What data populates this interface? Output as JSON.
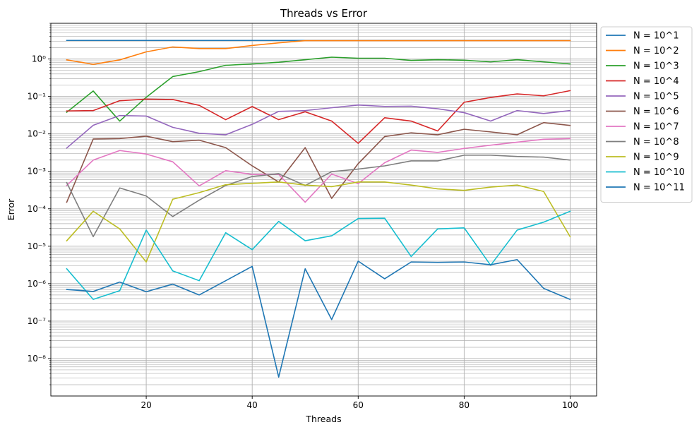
{
  "chart_data": {
    "type": "line",
    "title": "Threads vs Error",
    "xlabel": "Threads",
    "ylabel": "Error",
    "yscale": "log",
    "xlim": [
      2,
      105
    ],
    "ylim": [
      1e-09,
      9
    ],
    "x_ticks": [
      20,
      40,
      60,
      80,
      100
    ],
    "x_tick_labels": [
      "20",
      "40",
      "60",
      "80",
      "100"
    ],
    "y_ticks": [
      1e-08,
      1e-07,
      1e-06,
      1e-05,
      0.0001,
      0.001,
      0.01,
      0.1,
      1
    ],
    "y_tick_labels": [
      "10⁻⁸",
      "10⁻⁷",
      "10⁻⁶",
      "10⁻⁵",
      "10⁻⁴",
      "10⁻³",
      "10⁻²",
      "10⁻¹",
      "10⁰"
    ],
    "grid": true,
    "legend_position": "outside-top-right",
    "x": [
      5,
      10,
      15,
      20,
      25,
      30,
      35,
      40,
      45,
      50,
      55,
      60,
      65,
      70,
      75,
      80,
      85,
      90,
      95,
      100
    ],
    "series": [
      {
        "name": "N = 10^1",
        "color": "#1f77b4",
        "values": [
          3.14,
          3.14,
          3.14,
          3.14,
          3.14,
          3.14,
          3.14,
          3.14,
          3.14,
          3.14,
          3.14,
          3.14,
          3.14,
          3.14,
          3.14,
          3.14,
          3.14,
          3.14,
          3.14,
          3.14
        ]
      },
      {
        "name": "N = 10^2",
        "color": "#ff7f0e",
        "values": [
          0.95,
          0.72,
          0.95,
          1.55,
          2.1,
          1.9,
          1.9,
          2.3,
          2.7,
          3.1,
          3.1,
          3.1,
          3.1,
          3.1,
          3.1,
          3.1,
          3.1,
          3.1,
          3.1,
          3.1
        ]
      },
      {
        "name": "N = 10^3",
        "color": "#2ca02c",
        "values": [
          0.038,
          0.14,
          0.022,
          0.095,
          0.34,
          0.46,
          0.68,
          0.74,
          0.82,
          0.96,
          1.12,
          1.05,
          1.05,
          0.92,
          0.96,
          0.93,
          0.84,
          0.96,
          0.84,
          0.74
        ]
      },
      {
        "name": "N = 10^4",
        "color": "#d62728",
        "values": [
          0.041,
          0.042,
          0.077,
          0.085,
          0.083,
          0.058,
          0.024,
          0.054,
          0.024,
          0.039,
          0.022,
          0.0056,
          0.027,
          0.022,
          0.012,
          0.07,
          0.094,
          0.117,
          0.104,
          0.143
        ]
      },
      {
        "name": "N = 10^5",
        "color": "#9467bd",
        "values": [
          0.0042,
          0.017,
          0.031,
          0.03,
          0.015,
          0.0104,
          0.0095,
          0.018,
          0.04,
          0.042,
          0.05,
          0.059,
          0.054,
          0.055,
          0.047,
          0.037,
          0.022,
          0.042,
          0.035,
          0.042
        ]
      },
      {
        "name": "N = 10^6",
        "color": "#8c564b",
        "values": [
          0.00015,
          0.0073,
          0.0075,
          0.0087,
          0.0062,
          0.0068,
          0.0043,
          0.0014,
          0.00052,
          0.0043,
          0.00019,
          0.0016,
          0.0085,
          0.0107,
          0.0095,
          0.0133,
          0.0113,
          0.0095,
          0.02,
          0.0168
        ]
      },
      {
        "name": "N = 10^7",
        "color": "#e377c2",
        "values": [
          0.00042,
          0.002,
          0.0036,
          0.0029,
          0.0018,
          0.00041,
          0.00104,
          0.00083,
          0.00083,
          0.00015,
          0.00085,
          0.00047,
          0.0017,
          0.0037,
          0.0032,
          0.0041,
          0.005,
          0.006,
          0.0072,
          0.0075
        ]
      },
      {
        "name": "N = 10^8",
        "color": "#7f7f7f",
        "values": [
          0.0005,
          1.8e-05,
          0.00036,
          0.00022,
          6.2e-05,
          0.00017,
          0.00042,
          0.00073,
          0.00086,
          0.00042,
          0.00098,
          0.00115,
          0.0014,
          0.0019,
          0.0019,
          0.0027,
          0.0027,
          0.0025,
          0.0024,
          0.002
        ]
      },
      {
        "name": "N = 10^9",
        "color": "#bcbd22",
        "values": [
          1.4e-05,
          8.6e-05,
          2.9e-05,
          3.8e-06,
          0.00018,
          0.00027,
          0.00044,
          0.00048,
          0.00052,
          0.00043,
          0.00039,
          0.00052,
          0.00052,
          0.00043,
          0.00034,
          0.00031,
          0.00038,
          0.00043,
          0.00029,
          1.8e-05
        ]
      },
      {
        "name": "N = 10^10",
        "color": "#17becf",
        "values": [
          2.5e-06,
          3.8e-07,
          6.5e-07,
          2.7e-05,
          2.2e-06,
          1.2e-06,
          2.3e-05,
          8.1e-06,
          4.6e-05,
          1.4e-05,
          1.9e-05,
          5.5e-05,
          5.6e-05,
          5.3e-06,
          2.9e-05,
          3.1e-05,
          3.1e-06,
          2.7e-05,
          4.4e-05,
          8.6e-05
        ]
      },
      {
        "name": "N = 10^11",
        "color": "#1f77b4",
        "values": [
          7e-07,
          6.2e-07,
          1.1e-06,
          6.1e-07,
          9.7e-07,
          5e-07,
          1.2e-06,
          2.9e-06,
          3.2e-09,
          2.5e-06,
          1.1e-07,
          4e-06,
          1.35e-06,
          3.8e-06,
          3.7e-06,
          3.8e-06,
          3.2e-06,
          4.4e-06,
          7.5e-07,
          3.8e-07
        ]
      }
    ]
  }
}
